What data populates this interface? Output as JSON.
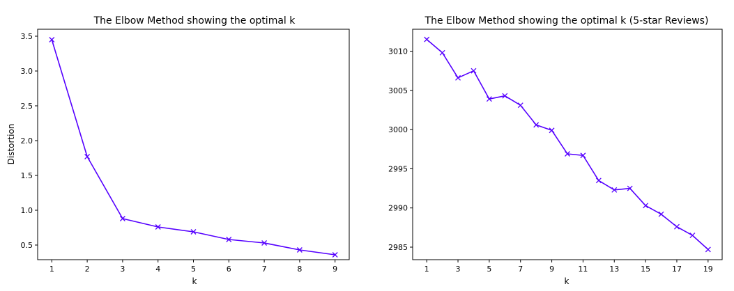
{
  "chart_data": [
    {
      "type": "line",
      "title": "The Elbow Method showing the optimal k",
      "xlabel": "k",
      "ylabel": "Distortion",
      "x": [
        1,
        2,
        3,
        4,
        5,
        6,
        7,
        8,
        9
      ],
      "series": [
        {
          "values": [
            3.45,
            1.77,
            0.88,
            0.76,
            0.69,
            0.58,
            0.53,
            0.43,
            0.36
          ],
          "color": "#5500ff",
          "marker": "x"
        }
      ],
      "xlim": [
        0.6,
        9.4
      ],
      "ylim": [
        0.29,
        3.6
      ],
      "xticks": [
        1,
        2,
        3,
        4,
        5,
        6,
        7,
        8,
        9
      ],
      "xtick_labels": [
        "1",
        "2",
        "3",
        "4",
        "5",
        "6",
        "7",
        "8",
        "9"
      ],
      "yticks": [
        0.5,
        1.0,
        1.5,
        2.0,
        2.5,
        3.0,
        3.5
      ],
      "ytick_labels": [
        "0.5",
        "1.0",
        "1.5",
        "2.0",
        "2.5",
        "3.0",
        "3.5"
      ],
      "grid": false
    },
    {
      "type": "line",
      "title": "The Elbow Method showing the optimal k (5-star Reviews)",
      "xlabel": "k",
      "ylabel": "",
      "x": [
        1,
        2,
        3,
        4,
        5,
        6,
        7,
        8,
        9,
        10,
        11,
        12,
        13,
        14,
        15,
        16,
        17,
        18,
        19
      ],
      "series": [
        {
          "values": [
            3011.5,
            3009.8,
            3006.6,
            3007.5,
            3003.9,
            3004.3,
            3003.1,
            3000.6,
            2999.9,
            2996.9,
            2996.7,
            2993.5,
            2992.3,
            2992.5,
            2990.3,
            2989.2,
            2987.6,
            2986.5,
            2984.7
          ],
          "color": "#5500ff",
          "marker": "x"
        }
      ],
      "xlim": [
        0.1,
        19.9
      ],
      "ylim": [
        2983.4,
        3012.8
      ],
      "xticks": [
        1,
        3,
        5,
        7,
        9,
        11,
        13,
        15,
        17,
        19
      ],
      "xtick_labels": [
        "1",
        "3",
        "5",
        "7",
        "9",
        "11",
        "13",
        "15",
        "17",
        "19"
      ],
      "yticks": [
        2985,
        2990,
        2995,
        3000,
        3005,
        3010
      ],
      "ytick_labels": [
        "2985",
        "2990",
        "2995",
        "3000",
        "3005",
        "3010"
      ],
      "grid": false
    }
  ]
}
